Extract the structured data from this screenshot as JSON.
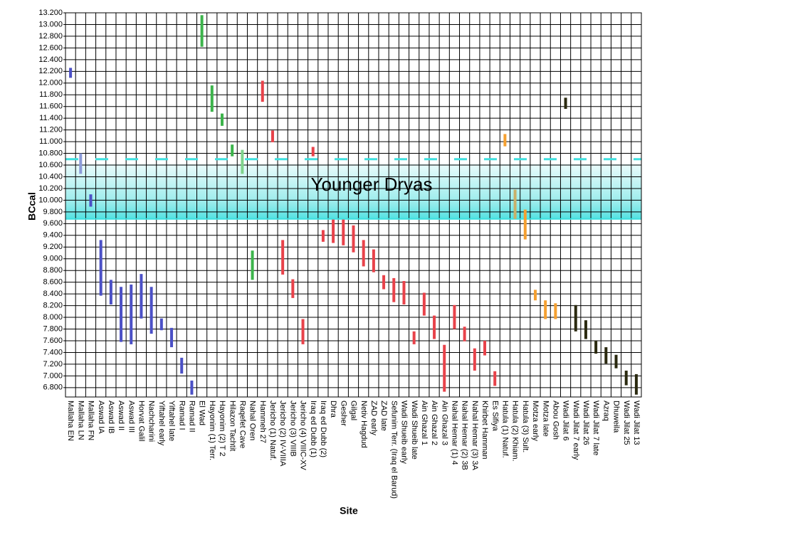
{
  "chart_data": {
    "type": "range",
    "xlabel": "Site",
    "ylabel": "BCcal",
    "categories": [
      "Mallaha EN",
      "Mallaha LN",
      "Mallaha FN",
      "Aswad IA",
      "Aswad IB",
      "Aswad II",
      "Aswad III",
      "Horvat Galil",
      "Nachcharini",
      "Yiftahel early",
      "Yiftahel late",
      "Ramad I",
      "Ramad II",
      "El Wad",
      "Hayonim (1) Terr.",
      "Hayonim (2) T 2",
      "Hilazon Tachtit",
      "Raqefet Cave",
      "Nahal Oren",
      "Hammeh 27",
      "Jericho (1) Natuf.",
      "Jericho (2) IV-VIIIA",
      "Jericho (3) VIIIB",
      "Jericho (4) VIIIC-XV",
      "Iraq ed Dubb (1)",
      "Iraq ed Dubb (2)",
      "Dhra",
      "Gesher",
      "Gilgal",
      "Netiv Hagdud",
      "ZAD early",
      "ZAD late",
      "Sefunim Terr. (Iraq el Barud)",
      "Wadi Shueib early",
      "Wadi Shueib late",
      "Ain Ghazal 1",
      "Ain Ghazal 2",
      "Ain Ghazal 3",
      "Nahal Hemar (1) 4",
      "Nahal Hemar (2) 3B",
      "Nahal Hemar (3) 3A",
      "Khirbet Hamman",
      "Es Sifiya",
      "Hatula (1) Natuf.",
      "Hatula (2) Khiam.",
      "Hatula (3) Sult.",
      "Motza early",
      "Motza late",
      "Abou Gosh",
      "Wadi Jilat 6",
      "Wadi Jilat 7 early",
      "Wadi Jilat 26",
      "Wadi Jilat 7 late",
      "Azraq",
      "Dhuweila",
      "Wadi Jilat 25",
      "Wadi Jilat 13"
    ],
    "low": [
      12.09,
      10.45,
      9.89,
      8.37,
      8.22,
      7.58,
      7.54,
      7.98,
      7.72,
      7.78,
      7.49,
      7.04,
      6.68,
      12.62,
      11.51,
      11.27,
      10.75,
      10.45,
      8.64,
      11.68,
      10.99,
      8.73,
      8.33,
      7.54,
      10.75,
      9.29,
      9.27,
      9.23,
      9.11,
      8.87,
      8.77,
      8.48,
      8.26,
      8.22,
      7.54,
      8.03,
      7.63,
      6.73,
      7.8,
      7.59,
      7.09,
      7.35,
      6.83,
      10.92,
      9.68,
      9.33,
      8.29,
      7.97,
      7.97,
      11.56,
      7.76,
      7.63,
      7.38,
      7.21,
      7.13,
      6.84,
      6.68
    ],
    "high": [
      12.26,
      10.8,
      10.1,
      9.32,
      8.64,
      8.52,
      8.56,
      8.74,
      8.52,
      7.98,
      7.82,
      7.31,
      6.92,
      13.16,
      11.96,
      11.48,
      10.95,
      10.86,
      9.14,
      12.04,
      11.19,
      9.32,
      8.65,
      7.97,
      10.91,
      9.49,
      9.67,
      9.67,
      9.57,
      9.32,
      9.16,
      8.72,
      8.67,
      8.62,
      7.76,
      8.42,
      8.03,
      7.53,
      8.21,
      7.84,
      7.47,
      7.6,
      7.08,
      11.13,
      10.18,
      9.84,
      8.47,
      8.29,
      8.24,
      11.75,
      8.21,
      7.95,
      7.6,
      7.49,
      7.36,
      7.09,
      7.03
    ],
    "colors": [
      "#4b50c6",
      "#8c9bd9",
      "#4b50c6",
      "#4b50c6",
      "#4b50c6",
      "#4b50c6",
      "#4b50c6",
      "#4b50c6",
      "#4b50c6",
      "#4b50c6",
      "#4b50c6",
      "#4b50c6",
      "#4b50c6",
      "#3cb44b",
      "#3cb44b",
      "#3cb44b",
      "#3cb44b",
      "#7fd38b",
      "#3cb44b",
      "#e8424a",
      "#e8424a",
      "#e8424a",
      "#e8424a",
      "#e8424a",
      "#e8424a",
      "#e8424a",
      "#e8424a",
      "#e8424a",
      "#e8424a",
      "#e8424a",
      "#e8424a",
      "#e8424a",
      "#e8424a",
      "#e8424a",
      "#e8424a",
      "#e8424a",
      "#e8424a",
      "#e8424a",
      "#e8424a",
      "#e8424a",
      "#e8424a",
      "#e8424a",
      "#e8424a",
      "#f5a030",
      "#c9b06a",
      "#f5a030",
      "#f5a030",
      "#f5a030",
      "#f5a030",
      "#2b2a10",
      "#2b2a10",
      "#2b2a10",
      "#2b2a10",
      "#2b2a10",
      "#2b2a10",
      "#2b2a10",
      "#2b2a10"
    ],
    "ylim": [
      6.64,
      13.2
    ],
    "yticks": [
      {
        "value": 6.8,
        "label": "6.800"
      },
      {
        "value": 7.0,
        "label": "7.000"
      },
      {
        "value": 7.2,
        "label": "7.200"
      },
      {
        "value": 7.4,
        "label": "7.400"
      },
      {
        "value": 7.6,
        "label": "7.600"
      },
      {
        "value": 7.8,
        "label": "7.800"
      },
      {
        "value": 8.0,
        "label": "8.000"
      },
      {
        "value": 8.2,
        "label": "8.200"
      },
      {
        "value": 8.4,
        "label": "8.400"
      },
      {
        "value": 8.6,
        "label": "8.600"
      },
      {
        "value": 8.8,
        "label": "8.800"
      },
      {
        "value": 9.0,
        "label": "9.000"
      },
      {
        "value": 9.2,
        "label": "9.200"
      },
      {
        "value": 9.4,
        "label": "9.400"
      },
      {
        "value": 9.6,
        "label": "9.600"
      },
      {
        "value": 9.8,
        "label": "9.800"
      },
      {
        "value": 10.0,
        "label": "10.000"
      },
      {
        "value": 10.2,
        "label": "10.200"
      },
      {
        "value": 10.4,
        "label": "10.400"
      },
      {
        "value": 10.6,
        "label": "10.600"
      },
      {
        "value": 10.8,
        "label": "10.800"
      },
      {
        "value": 11.0,
        "label": "11.000"
      },
      {
        "value": 11.2,
        "label": "11.200"
      },
      {
        "value": 11.4,
        "label": "11.400"
      },
      {
        "value": 11.6,
        "label": "11.600"
      },
      {
        "value": 11.8,
        "label": "11.800"
      },
      {
        "value": 12.0,
        "label": "12.000"
      },
      {
        "value": 12.2,
        "label": "12.200"
      },
      {
        "value": 12.4,
        "label": "12.400"
      },
      {
        "value": 12.6,
        "label": "12.600"
      },
      {
        "value": 12.8,
        "label": "12.800"
      },
      {
        "value": 13.0,
        "label": "13.000"
      },
      {
        "value": 13.2,
        "label": "13.200"
      }
    ],
    "grid": true,
    "band": {
      "label": "Younger Dryas",
      "range": [
        9.68,
        10.62
      ],
      "dashed_line": 10.7,
      "color": "#3fe0e0"
    }
  }
}
